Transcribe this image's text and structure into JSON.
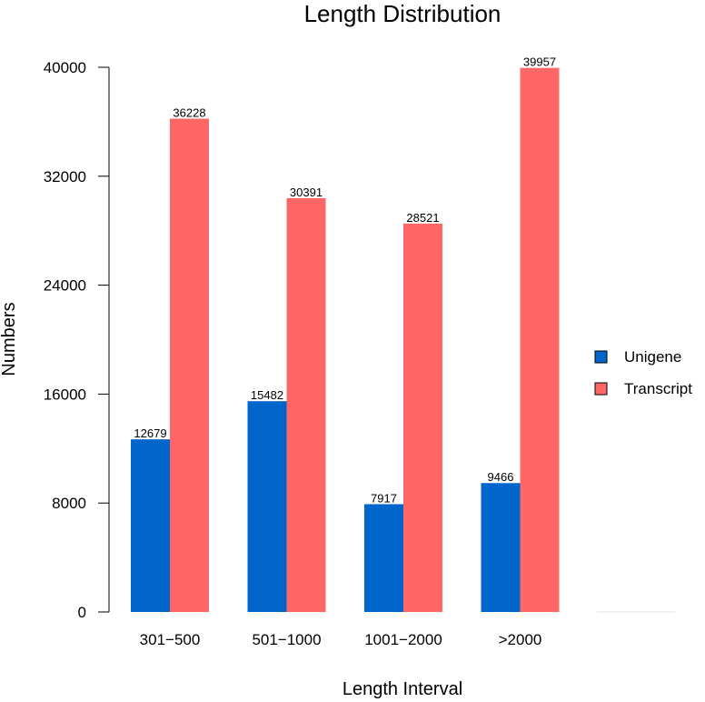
{
  "chart_data": {
    "type": "bar",
    "title": "Length Distribution",
    "xlabel": "Length Interval",
    "ylabel": "Numbers",
    "categories": [
      "301−500",
      "501−1000",
      "1001−2000",
      ">2000"
    ],
    "series": [
      {
        "name": "Unigene",
        "color": "#0066CC",
        "values": [
          12679,
          15482,
          7917,
          9466
        ]
      },
      {
        "name": "Transcript",
        "color": "#FF6666",
        "values": [
          36228,
          30391,
          28521,
          39957
        ]
      }
    ],
    "yticks": [
      0,
      8000,
      16000,
      24000,
      32000,
      40000
    ],
    "ylim": [
      0,
      40000
    ],
    "grid": false,
    "legend_position": "right"
  }
}
